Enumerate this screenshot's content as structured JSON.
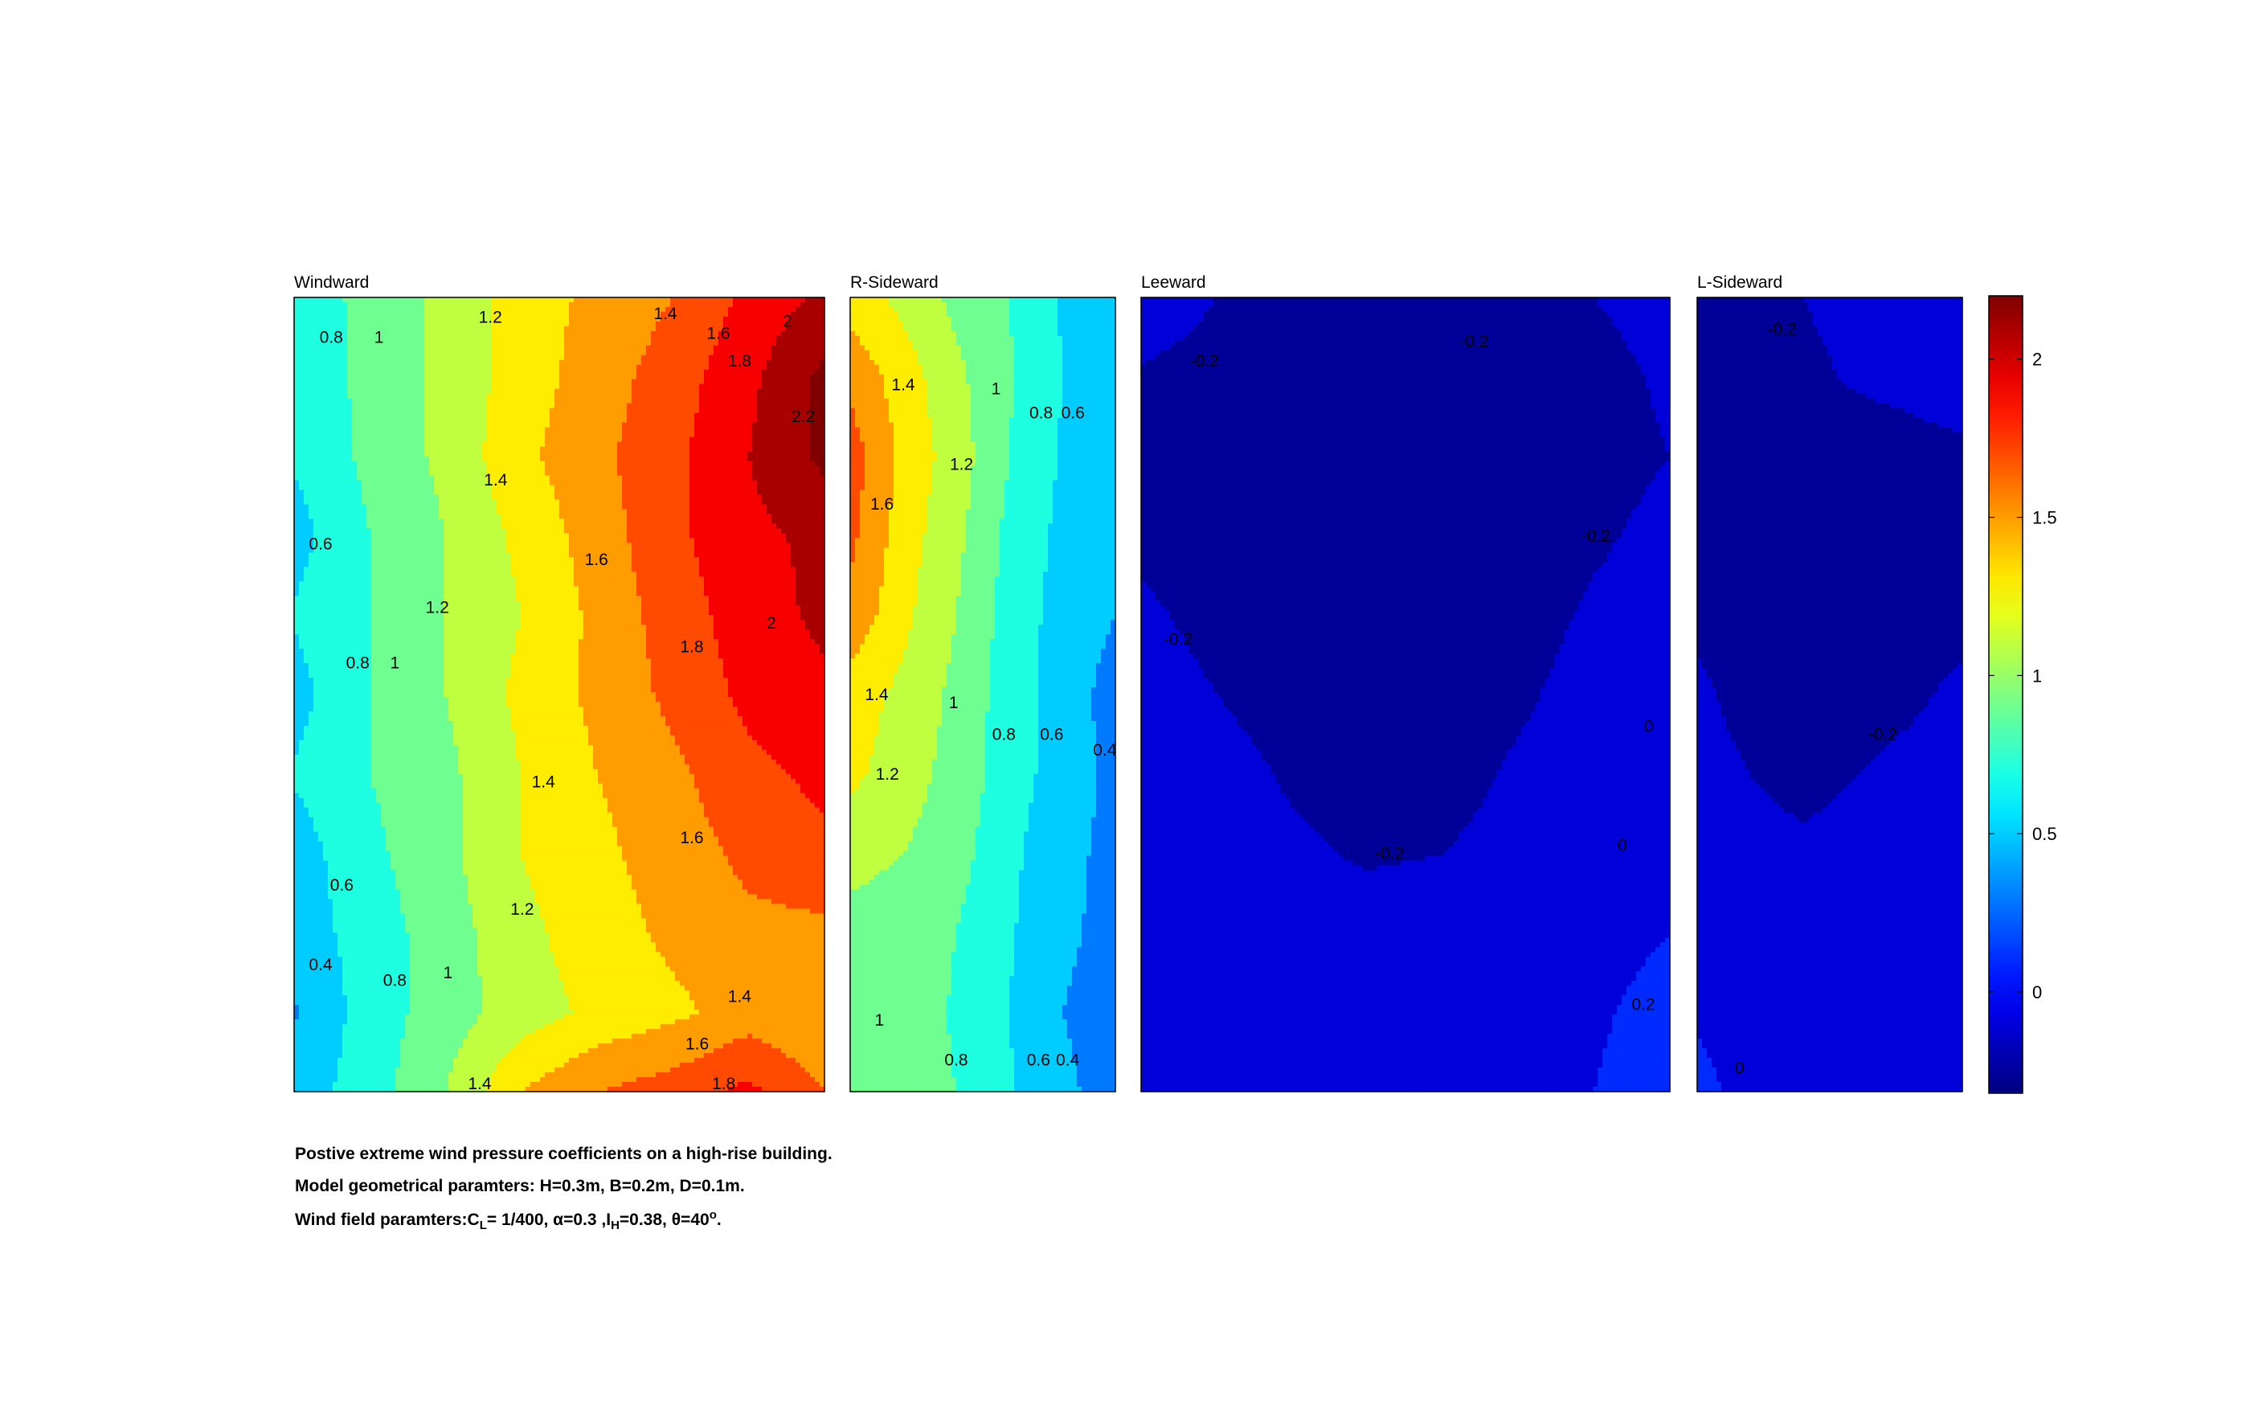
{
  "chart_data": {
    "type": "heatmap",
    "subtype": "filled-contour",
    "colormap": "jet",
    "panels": [
      {
        "title": "Windward",
        "cols": 8,
        "rows": 11,
        "z": [
          [
            0.7,
            0.85,
            1.05,
            1.3,
            1.45,
            1.6,
            1.85,
            2.05
          ],
          [
            0.68,
            0.85,
            1.05,
            1.3,
            1.5,
            1.7,
            1.95,
            2.25
          ],
          [
            0.62,
            0.85,
            1.05,
            1.35,
            1.55,
            1.75,
            2.0,
            2.25
          ],
          [
            0.52,
            0.8,
            1.0,
            1.25,
            1.5,
            1.75,
            1.95,
            2.05
          ],
          [
            0.62,
            0.8,
            1.0,
            1.2,
            1.45,
            1.7,
            1.9,
            2.05
          ],
          [
            0.52,
            0.8,
            1.0,
            1.25,
            1.45,
            1.65,
            1.85,
            1.95
          ],
          [
            0.62,
            0.8,
            0.95,
            1.2,
            1.4,
            1.55,
            1.75,
            1.85
          ],
          [
            0.5,
            0.75,
            0.95,
            1.2,
            1.35,
            1.5,
            1.65,
            1.75
          ],
          [
            0.48,
            0.7,
            0.9,
            1.15,
            1.3,
            1.45,
            1.55,
            1.55
          ],
          [
            0.38,
            0.7,
            0.9,
            1.1,
            1.25,
            1.35,
            1.5,
            1.4
          ],
          [
            0.5,
            0.7,
            1.0,
            1.4,
            1.6,
            1.7,
            1.85,
            1.6
          ]
        ],
        "labels": [
          {
            "text": "0.8",
            "x": 0.07,
            "y": 0.05
          },
          {
            "text": "1",
            "x": 0.16,
            "y": 0.05
          },
          {
            "text": "1.2",
            "x": 0.37,
            "y": 0.025
          },
          {
            "text": "1.4",
            "x": 0.7,
            "y": 0.02
          },
          {
            "text": "1.6",
            "x": 0.8,
            "y": 0.045
          },
          {
            "text": "2",
            "x": 0.93,
            "y": 0.03
          },
          {
            "text": "1.8",
            "x": 0.84,
            "y": 0.08
          },
          {
            "text": "2.2",
            "x": 0.96,
            "y": 0.15
          },
          {
            "text": "1.4",
            "x": 0.38,
            "y": 0.23
          },
          {
            "text": "0.6",
            "x": 0.05,
            "y": 0.31
          },
          {
            "text": "1.6",
            "x": 0.57,
            "y": 0.33
          },
          {
            "text": "1.2",
            "x": 0.27,
            "y": 0.39
          },
          {
            "text": "2",
            "x": 0.9,
            "y": 0.41
          },
          {
            "text": "1.8",
            "x": 0.75,
            "y": 0.44
          },
          {
            "text": "0.8",
            "x": 0.12,
            "y": 0.46
          },
          {
            "text": "1",
            "x": 0.19,
            "y": 0.46
          },
          {
            "text": "1.4",
            "x": 0.47,
            "y": 0.61
          },
          {
            "text": "1.6",
            "x": 0.75,
            "y": 0.68
          },
          {
            "text": "0.6",
            "x": 0.09,
            "y": 0.74
          },
          {
            "text": "1.2",
            "x": 0.43,
            "y": 0.77
          },
          {
            "text": "0.4",
            "x": 0.05,
            "y": 0.84
          },
          {
            "text": "0.8",
            "x": 0.19,
            "y": 0.86
          },
          {
            "text": "1",
            "x": 0.29,
            "y": 0.85
          },
          {
            "text": "1.4",
            "x": 0.84,
            "y": 0.88
          },
          {
            "text": "1.6",
            "x": 0.76,
            "y": 0.94
          },
          {
            "text": "1.4",
            "x": 0.35,
            "y": 0.99
          },
          {
            "text": "1.8",
            "x": 0.81,
            "y": 0.99
          }
        ]
      },
      {
        "title": "R-Sideward",
        "cols": 6,
        "rows": 11,
        "z": [
          [
            1.3,
            1.15,
            0.95,
            0.8,
            0.58,
            0.55
          ],
          [
            1.55,
            1.3,
            1.05,
            0.82,
            0.6,
            0.55
          ],
          [
            1.7,
            1.35,
            1.1,
            0.8,
            0.58,
            0.45
          ],
          [
            1.65,
            1.3,
            1.05,
            0.75,
            0.55,
            0.4
          ],
          [
            1.55,
            1.25,
            1.0,
            0.72,
            0.52,
            0.4
          ],
          [
            1.3,
            1.15,
            0.95,
            0.7,
            0.5,
            0.32
          ],
          [
            1.25,
            1.1,
            0.92,
            0.7,
            0.5,
            0.35
          ],
          [
            1.05,
            1.0,
            0.88,
            0.65,
            0.45,
            0.35
          ],
          [
            0.95,
            0.92,
            0.8,
            0.62,
            0.45,
            0.32
          ],
          [
            0.92,
            0.9,
            0.78,
            0.6,
            0.4,
            0.28
          ],
          [
            0.9,
            0.88,
            0.8,
            0.62,
            0.45,
            0.3
          ]
        ],
        "labels": [
          {
            "text": "1.4",
            "x": 0.2,
            "y": 0.11
          },
          {
            "text": "1",
            "x": 0.55,
            "y": 0.115
          },
          {
            "text": "0.8",
            "x": 0.72,
            "y": 0.145
          },
          {
            "text": "0.6",
            "x": 0.84,
            "y": 0.145
          },
          {
            "text": "1.2",
            "x": 0.42,
            "y": 0.21
          },
          {
            "text": "1.6",
            "x": 0.12,
            "y": 0.26
          },
          {
            "text": "1.4",
            "x": 0.1,
            "y": 0.5
          },
          {
            "text": "1",
            "x": 0.39,
            "y": 0.51
          },
          {
            "text": "0.8",
            "x": 0.58,
            "y": 0.55
          },
          {
            "text": "0.6",
            "x": 0.76,
            "y": 0.55
          },
          {
            "text": "0.4",
            "x": 0.96,
            "y": 0.57
          },
          {
            "text": "1.2",
            "x": 0.14,
            "y": 0.6
          },
          {
            "text": "1",
            "x": 0.11,
            "y": 0.91
          },
          {
            "text": "0.8",
            "x": 0.4,
            "y": 0.96
          },
          {
            "text": "0.6",
            "x": 0.71,
            "y": 0.96
          },
          {
            "text": "0.4",
            "x": 0.82,
            "y": 0.96
          }
        ]
      },
      {
        "title": "Leeward",
        "cols": 8,
        "rows": 11,
        "z": [
          [
            -0.1,
            -0.2,
            -0.24,
            -0.3,
            -0.32,
            -0.25,
            -0.2,
            -0.15
          ],
          [
            -0.22,
            -0.26,
            -0.3,
            -0.3,
            -0.3,
            -0.28,
            -0.24,
            -0.18
          ],
          [
            -0.25,
            -0.28,
            -0.3,
            -0.32,
            -0.32,
            -0.3,
            -0.25,
            -0.2
          ],
          [
            -0.24,
            -0.27,
            -0.3,
            -0.32,
            -0.32,
            -0.3,
            -0.22,
            -0.16
          ],
          [
            -0.17,
            -0.25,
            -0.3,
            -0.32,
            -0.32,
            -0.25,
            -0.18,
            -0.14
          ],
          [
            -0.12,
            -0.2,
            -0.27,
            -0.3,
            -0.28,
            -0.22,
            -0.15,
            -0.08
          ],
          [
            -0.1,
            -0.14,
            -0.22,
            -0.26,
            -0.25,
            -0.18,
            -0.14,
            -0.08
          ],
          [
            -0.1,
            -0.12,
            -0.17,
            -0.22,
            -0.2,
            -0.15,
            -0.12,
            -0.05
          ],
          [
            -0.08,
            -0.1,
            -0.12,
            -0.12,
            -0.12,
            -0.1,
            -0.05,
            0.0
          ],
          [
            -0.08,
            -0.1,
            -0.12,
            -0.12,
            -0.12,
            -0.1,
            -0.02,
            0.05
          ],
          [
            -0.06,
            -0.08,
            -0.1,
            -0.12,
            -0.12,
            -0.08,
            0.0,
            0.08
          ]
        ],
        "labels": [
          {
            "text": "-0.2",
            "x": 0.12,
            "y": 0.08
          },
          {
            "text": "-0.2",
            "x": 0.63,
            "y": 0.055
          },
          {
            "text": "-0.2",
            "x": 0.86,
            "y": 0.3
          },
          {
            "text": "-0.2",
            "x": 0.07,
            "y": 0.43
          },
          {
            "text": "0",
            "x": 0.96,
            "y": 0.54
          },
          {
            "text": "-0.2",
            "x": 0.47,
            "y": 0.7
          },
          {
            "text": "0",
            "x": 0.91,
            "y": 0.69
          },
          {
            "text": "0.2",
            "x": 0.95,
            "y": 0.89
          }
        ]
      },
      {
        "title": "L-Sideward",
        "cols": 6,
        "rows": 11,
        "z": [
          [
            -0.2,
            -0.26,
            -0.2,
            -0.14,
            -0.1,
            -0.08
          ],
          [
            -0.24,
            -0.28,
            -0.24,
            -0.18,
            -0.15,
            -0.1
          ],
          [
            -0.26,
            -0.3,
            -0.3,
            -0.28,
            -0.26,
            -0.24
          ],
          [
            -0.27,
            -0.3,
            -0.32,
            -0.32,
            -0.3,
            -0.28
          ],
          [
            -0.24,
            -0.3,
            -0.32,
            -0.32,
            -0.3,
            -0.27
          ],
          [
            -0.16,
            -0.27,
            -0.3,
            -0.3,
            -0.24,
            -0.15
          ],
          [
            -0.12,
            -0.2,
            -0.26,
            -0.2,
            -0.14,
            -0.1
          ],
          [
            -0.1,
            -0.14,
            -0.16,
            -0.14,
            -0.1,
            -0.08
          ],
          [
            -0.08,
            -0.1,
            -0.12,
            -0.12,
            -0.1,
            -0.06
          ],
          [
            -0.02,
            -0.08,
            -0.1,
            -0.1,
            -0.08,
            -0.06
          ],
          [
            0.05,
            -0.06,
            -0.08,
            -0.08,
            -0.08,
            -0.06
          ]
        ],
        "labels": [
          {
            "text": "-0.2",
            "x": 0.32,
            "y": 0.04
          },
          {
            "text": "-0.2",
            "x": 0.7,
            "y": 0.55
          },
          {
            "text": "0",
            "x": 0.16,
            "y": 0.97
          }
        ]
      }
    ],
    "levels": [
      -0.2,
      0,
      0.2,
      0.4,
      0.6,
      0.8,
      1.0,
      1.2,
      1.4,
      1.6,
      1.8,
      2.0,
      2.2
    ],
    "colorbar": {
      "range": [
        -0.32,
        2.2
      ],
      "ticks": [
        "0",
        "0.5",
        "1",
        "1.5",
        "2"
      ],
      "tick_values": [
        0,
        0.5,
        1,
        1.5,
        2
      ]
    }
  },
  "caption": {
    "line1": "Postive extreme  wind pressure coefficients on a high-rise building.",
    "line2": "Model geometrical paramters: H=0.3m, B=0.2m, D=0.1m.",
    "line3": {
      "prefix": "Wind field paramters:C",
      "sub1": "L",
      "part2": "= 1/400, α=0.3 ,I",
      "sub2": "H",
      "part3": "=0.38, θ=40",
      "sup": "o",
      "suffix": "."
    }
  },
  "colors": {
    "outline": "#000000",
    "contour_line": "#333333"
  }
}
